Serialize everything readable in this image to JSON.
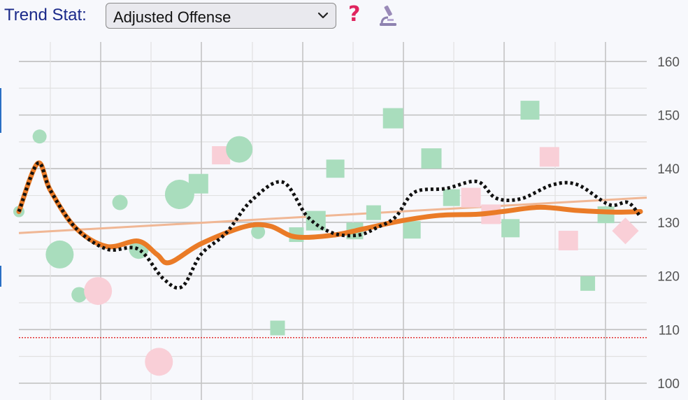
{
  "toolbar": {
    "label": "Trend Stat:",
    "selected": "Adjusted Offense",
    "help_icon": "question-mark-icon",
    "tool_icon": "microscope-icon"
  },
  "colors": {
    "green": "#a9ddbd",
    "pink": "#f9cfd7",
    "orange_line": "#ea7b27",
    "trend_line": "#f0b795",
    "dotted_line": "#111111",
    "reference_line": "#e02020",
    "grid": "#d6d6d6",
    "background": "#f7f8fc"
  },
  "chart_data": {
    "type": "scatter",
    "ylim": [
      98,
      162
    ],
    "xlim": [
      0,
      100
    ],
    "y_ticks": [
      100,
      110,
      120,
      130,
      140,
      150,
      160
    ],
    "reference_line": 108.5,
    "trend_line": [
      [
        0,
        128
      ],
      [
        100,
        134.6
      ]
    ],
    "smooth_line": [
      [
        0,
        132
      ],
      [
        3,
        141
      ],
      [
        5,
        136
      ],
      [
        9,
        129
      ],
      [
        14,
        125.5
      ],
      [
        19,
        126.5
      ],
      [
        22,
        124
      ],
      [
        24,
        122.5
      ],
      [
        29,
        126
      ],
      [
        36,
        129.2
      ],
      [
        40,
        129.3
      ],
      [
        44,
        127.3
      ],
      [
        50,
        127.6
      ],
      [
        55,
        128.8
      ],
      [
        61,
        130.3
      ],
      [
        67,
        131.3
      ],
      [
        73,
        131.5
      ],
      [
        77,
        132
      ],
      [
        83,
        132.8
      ],
      [
        89,
        132.2
      ],
      [
        95,
        131.9
      ],
      [
        99,
        132
      ]
    ],
    "dotted_line": [
      [
        0,
        132
      ],
      [
        3,
        141
      ],
      [
        5,
        136
      ],
      [
        9,
        129
      ],
      [
        14,
        125
      ],
      [
        19,
        125
      ],
      [
        23,
        119.5
      ],
      [
        26,
        118
      ],
      [
        29,
        124
      ],
      [
        33,
        128
      ],
      [
        37,
        134
      ],
      [
        42,
        137.5
      ],
      [
        46,
        131
      ],
      [
        50,
        128
      ],
      [
        54,
        127.6
      ],
      [
        57,
        129
      ],
      [
        60,
        131
      ],
      [
        63,
        135.6
      ],
      [
        68,
        136.3
      ],
      [
        73,
        137.6
      ],
      [
        76,
        134.5
      ],
      [
        80,
        134.4
      ],
      [
        85,
        137
      ],
      [
        89,
        137
      ],
      [
        94,
        133.3
      ],
      [
        97,
        133.7
      ],
      [
        99,
        131
      ]
    ],
    "points": [
      {
        "x": 0,
        "y": 132,
        "color": "green",
        "shape": "circle",
        "size": 8
      },
      {
        "x": 3.3,
        "y": 146,
        "color": "green",
        "shape": "circle",
        "size": 10
      },
      {
        "x": 6.5,
        "y": 124,
        "color": "green",
        "shape": "circle",
        "size": 20
      },
      {
        "x": 9.6,
        "y": 116.5,
        "color": "green",
        "shape": "circle",
        "size": 11
      },
      {
        "x": 12.6,
        "y": 117.2,
        "color": "pink",
        "shape": "circle",
        "size": 20
      },
      {
        "x": 16.1,
        "y": 133.7,
        "color": "green",
        "shape": "circle",
        "size": 11
      },
      {
        "x": 19.1,
        "y": 125,
        "color": "green",
        "shape": "circle",
        "size": 14
      },
      {
        "x": 22.3,
        "y": 104,
        "color": "pink",
        "shape": "circle",
        "size": 20
      },
      {
        "x": 25.6,
        "y": 135.2,
        "color": "green",
        "shape": "circle",
        "size": 21
      },
      {
        "x": 28.6,
        "y": 137.2,
        "color": "green",
        "shape": "square",
        "size": 28
      },
      {
        "x": 32.2,
        "y": 142.5,
        "color": "pink",
        "shape": "square",
        "size": 26
      },
      {
        "x": 35.1,
        "y": 143.6,
        "color": "green",
        "shape": "circle",
        "size": 19
      },
      {
        "x": 38.1,
        "y": 128.2,
        "color": "green",
        "shape": "circle",
        "size": 10
      },
      {
        "x": 41.2,
        "y": 110.3,
        "color": "green",
        "shape": "square",
        "size": 21
      },
      {
        "x": 44.2,
        "y": 127.7,
        "color": "green",
        "shape": "square",
        "size": 21
      },
      {
        "x": 47.3,
        "y": 130.3,
        "color": "green",
        "shape": "square",
        "size": 28
      },
      {
        "x": 50.4,
        "y": 140,
        "color": "green",
        "shape": "square",
        "size": 26
      },
      {
        "x": 53.5,
        "y": 128.4,
        "color": "green",
        "shape": "square",
        "size": 24
      },
      {
        "x": 56.5,
        "y": 131.8,
        "color": "green",
        "shape": "square",
        "size": 21
      },
      {
        "x": 59.6,
        "y": 149.4,
        "color": "green",
        "shape": "square",
        "size": 29
      },
      {
        "x": 62.6,
        "y": 128.6,
        "color": "green",
        "shape": "square",
        "size": 25
      },
      {
        "x": 65.7,
        "y": 141.9,
        "color": "green",
        "shape": "square",
        "size": 29
      },
      {
        "x": 68.9,
        "y": 134.6,
        "color": "green",
        "shape": "square",
        "size": 24
      },
      {
        "x": 72,
        "y": 134.6,
        "color": "pink",
        "shape": "square",
        "size": 28
      },
      {
        "x": 75.2,
        "y": 131.5,
        "color": "pink",
        "shape": "square",
        "size": 28
      },
      {
        "x": 78.3,
        "y": 128.9,
        "color": "green",
        "shape": "square",
        "size": 26
      },
      {
        "x": 81.4,
        "y": 150.9,
        "color": "green",
        "shape": "square",
        "size": 27
      },
      {
        "x": 84.5,
        "y": 142.2,
        "color": "pink",
        "shape": "square",
        "size": 28
      },
      {
        "x": 87.5,
        "y": 126.6,
        "color": "pink",
        "shape": "square",
        "size": 28
      },
      {
        "x": 90.6,
        "y": 118.6,
        "color": "green",
        "shape": "square",
        "size": 21
      },
      {
        "x": 93.5,
        "y": 131.4,
        "color": "green",
        "shape": "square",
        "size": 24
      },
      {
        "x": 96.6,
        "y": 128.4,
        "color": "pink",
        "shape": "diamond",
        "size": 27
      }
    ]
  }
}
